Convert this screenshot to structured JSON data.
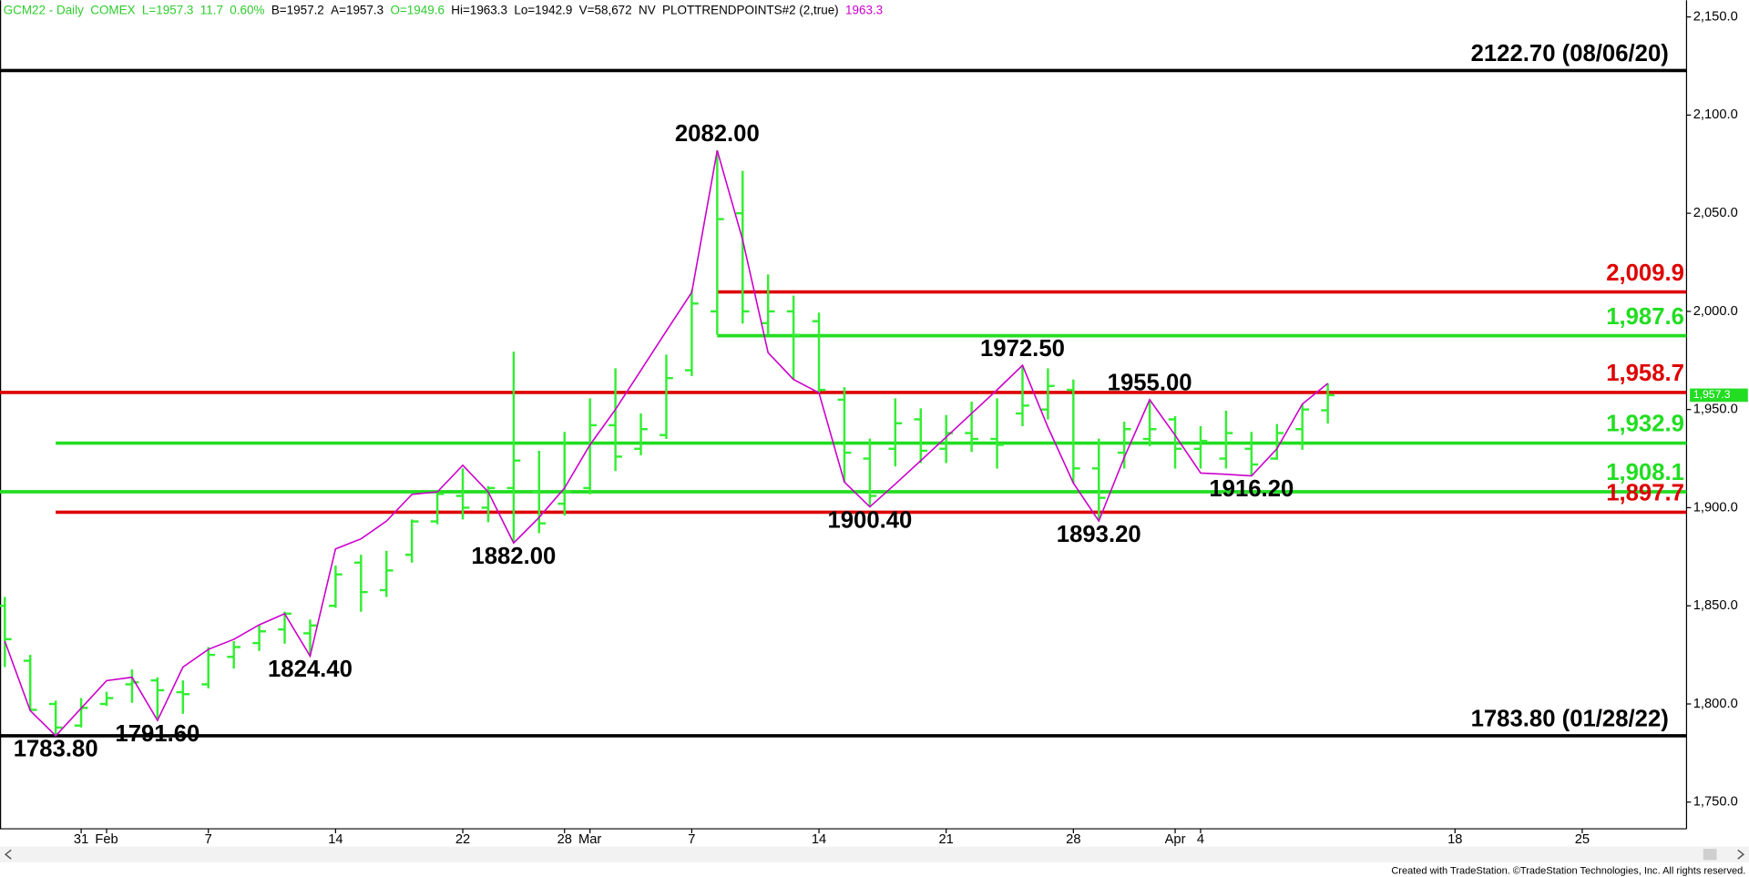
{
  "header": [
    {
      "text": "GCM22 - Daily",
      "color": "#2ecc2e"
    },
    {
      "text": "COMEX",
      "color": "#2ecc2e"
    },
    {
      "text": "L=1957.3",
      "color": "#2ecc2e"
    },
    {
      "text": "11.7",
      "color": "#2ecc2e"
    },
    {
      "text": "0.60%",
      "color": "#2ecc2e"
    },
    {
      "text": "B=1957.2",
      "color": "#000000"
    },
    {
      "text": "A=1957.3",
      "color": "#000000"
    },
    {
      "text": "O=1949.6",
      "color": "#2ecc2e"
    },
    {
      "text": "Hi=1963.3",
      "color": "#000000"
    },
    {
      "text": "Lo=1942.9",
      "color": "#000000"
    },
    {
      "text": "V=58,672",
      "color": "#000000"
    },
    {
      "text": "NV",
      "color": "#000000"
    },
    {
      "text": "PLOTTRENDPOINTS#2 (2,true)",
      "color": "#000000"
    },
    {
      "text": "1963.3",
      "color": "#cc00cc"
    }
  ],
  "footer": "Created with TradeStation. ©TradeStation Technologies, Inc. All rights reserved.",
  "chart_data": {
    "type": "ohlc",
    "color": "#33ee33",
    "x": [
      -2,
      -1,
      0,
      1,
      2,
      3,
      4,
      5,
      6,
      7,
      8,
      9,
      10,
      11,
      12,
      13,
      14,
      15,
      16,
      17,
      18,
      19,
      20,
      21,
      22,
      23,
      24,
      25,
      26,
      27,
      28,
      29,
      30,
      31,
      32,
      33,
      34,
      35,
      36,
      37,
      38,
      39,
      40,
      41,
      42,
      43,
      44,
      45,
      46,
      47,
      48,
      49,
      50
    ],
    "open": [
      1850,
      1822,
      1800,
      1789,
      1800,
      1810,
      1812,
      1806,
      1810,
      1824,
      1831,
      1838,
      1836,
      1850,
      1872,
      1858,
      1876,
      1893,
      1906,
      1900,
      1910,
      1908,
      1902,
      1910,
      1942,
      1930,
      1937,
      1970,
      2000,
      2050,
      1994,
      2000,
      1995,
      1955,
      1925,
      1930,
      1945,
      1930,
      1938,
      1935,
      1948,
      1950,
      1960,
      1920,
      1928,
      1935,
      1945,
      1930,
      1925,
      1930,
      1925,
      1940,
      1949.6
    ],
    "high": [
      1854.5,
      1825,
      1801.7,
      1803,
      1806.2,
      1817.6,
      1813.6,
      1812,
      1829,
      1832,
      1840,
      1847,
      1843,
      1870.5,
      1876,
      1878,
      1894,
      1908.5,
      1920,
      1911,
      1979.5,
      1929,
      1938.6,
      1955.7,
      1971,
      1948,
      1978,
      2011,
      2082,
      2071.6,
      2018.8,
      2008,
      1999.4,
      1961.4,
      1935.2,
      1955.7,
      1950.6,
      1947.2,
      1954,
      1955.7,
      1972.5,
      1971,
      1965.3,
      1935.2,
      1943.8,
      1955,
      1946.6,
      1941.5,
      1949.4,
      1938.6,
      1942.6,
      1952.8,
      1963.3
    ],
    "low": [
      1818.8,
      1796.6,
      1783.8,
      1788,
      1799,
      1800.6,
      1791.6,
      1795,
      1808,
      1818,
      1827,
      1830.7,
      1824.4,
      1849,
      1847,
      1854.5,
      1872,
      1891.5,
      1894,
      1892.6,
      1882,
      1887,
      1896,
      1906.8,
      1918.7,
      1926.7,
      1935,
      1967,
      1988,
      1993.8,
      1988,
      1965.3,
      1958.5,
      1913,
      1900.4,
      1921,
      1922.7,
      1922.7,
      1928.4,
      1919.9,
      1941.5,
      1944.9,
      1912.5,
      1893.2,
      1919.9,
      1931.3,
      1919.9,
      1919.9,
      1919.9,
      1916.2,
      1924.4,
      1929.5,
      1942.9
    ],
    "close": [
      1833,
      1797,
      1788,
      1798,
      1803,
      1811,
      1807,
      1805,
      1825,
      1829,
      1837,
      1846,
      1840,
      1866,
      1857,
      1868,
      1893,
      1907,
      1900,
      1910,
      1924,
      1892,
      1908,
      1942,
      1926,
      1940,
      1966,
      2004,
      2047,
      2000,
      2000,
      1988,
      1960,
      1928,
      1906,
      1943,
      1929,
      1938,
      1935,
      1932,
      1952,
      1962,
      1920,
      1905,
      1940,
      1940,
      1930,
      1934,
      1938,
      1922,
      1938,
      1950,
      1957.3
    ],
    "xlim": [
      -2.19,
      64.1
    ],
    "xticks": [
      {
        "value": 1,
        "label": "31"
      },
      {
        "value": 2,
        "label": "Feb"
      },
      {
        "value": 6,
        "label": "7"
      },
      {
        "value": 11,
        "label": "14"
      },
      {
        "value": 16,
        "label": "22"
      },
      {
        "value": 20,
        "label": "28"
      },
      {
        "value": 21,
        "label": "Mar"
      },
      {
        "value": 25,
        "label": "7"
      },
      {
        "value": 30,
        "label": "14"
      },
      {
        "value": 35,
        "label": "21"
      },
      {
        "value": 40,
        "label": "28"
      },
      {
        "value": 44,
        "label": "Apr"
      },
      {
        "value": 45,
        "label": "4"
      },
      {
        "value": 55,
        "label": "18"
      },
      {
        "value": 60,
        "label": "25"
      }
    ],
    "ylim": [
      1736.4,
      2158.5
    ],
    "yticks": [
      {
        "value": 1750,
        "label": "1,750.0"
      },
      {
        "value": 1800,
        "label": "1,800.0"
      },
      {
        "value": 1850,
        "label": "1,850.0"
      },
      {
        "value": 1900,
        "label": "1,900.0"
      },
      {
        "value": 1950,
        "label": "1,950.0"
      },
      {
        "value": 2000,
        "label": "2,000.0"
      },
      {
        "value": 2050,
        "label": "2,050.0"
      },
      {
        "value": 2100,
        "label": "2,100.0"
      },
      {
        "value": 2150,
        "label": "2,150.0"
      }
    ],
    "swing": {
      "color": "#cc00cc",
      "x": [
        -2,
        -1,
        0,
        2,
        3,
        4,
        5,
        6,
        7,
        8,
        9,
        10,
        11,
        12,
        13,
        14,
        15,
        16,
        17,
        18,
        19,
        20,
        21,
        22,
        23,
        24,
        25,
        26,
        27,
        28,
        29,
        30,
        31,
        32,
        33,
        34,
        35,
        36,
        37,
        38,
        39,
        40,
        41,
        42,
        43,
        44,
        45,
        46,
        47,
        48,
        49,
        50
      ],
      "values": [
        1832,
        1796.6,
        1783.8,
        1811.9,
        1813.6,
        1791.6,
        1818.8,
        1827.8,
        1832.9,
        1840.3,
        1846,
        1824.4,
        1879,
        1884.1,
        1893.2,
        1906.8,
        1908,
        1921.6,
        1908,
        1882,
        1895,
        1910,
        1932,
        1950,
        1970,
        1990,
        2009.7,
        2082,
        2036.4,
        1979,
        1965.3,
        1958.5,
        1913,
        1900.4,
        1912,
        1924,
        1936,
        1948,
        1960,
        1972.5,
        1941,
        1912.5,
        1893.2,
        1925.6,
        1955,
        1936.9,
        1917.6,
        1917,
        1916.2,
        1930,
        1952.8,
        1963.3
      ],
      "value_labels": [
        null,
        null,
        "1783.80",
        null,
        null,
        "1791.60",
        null,
        null,
        null,
        null,
        null,
        "1824.40",
        null,
        null,
        null,
        null,
        null,
        null,
        null,
        "1882.00",
        null,
        null,
        null,
        null,
        null,
        null,
        null,
        "2082.00",
        null,
        null,
        null,
        null,
        null,
        "1900.40",
        null,
        null,
        null,
        null,
        null,
        "1972.50",
        null,
        null,
        "1893.20",
        null,
        "1955.00",
        null,
        null,
        null,
        "1916.20",
        null,
        null,
        null
      ]
    },
    "levels": [
      {
        "value": 2122.7,
        "label": "2122.70 (08/06/20)",
        "color": "#000000",
        "start": null
      },
      {
        "value": 2009.9,
        "label": "2,009.9",
        "color": "#dd0000",
        "start": 26
      },
      {
        "value": 1987.6,
        "label": "1,987.6",
        "color": "#22dd22",
        "start": 26
      },
      {
        "value": 1958.7,
        "label": "1,958.7",
        "color": "#dd0000",
        "start": null
      },
      {
        "value": 1932.9,
        "label": "1,932.9",
        "color": "#22dd22",
        "start": 0
      },
      {
        "value": 1908.1,
        "label": "1,908.1",
        "color": "#22dd22",
        "start": null
      },
      {
        "value": 1897.7,
        "label": "1,897.7",
        "color": "#dd0000",
        "start": 0
      },
      {
        "value": 1783.8,
        "label": "1783.80 (01/28/22)",
        "color": "#000000",
        "start": null
      }
    ],
    "last_price": {
      "value": 1957.3,
      "label": "1,957.3",
      "color": "#22dd22"
    }
  }
}
